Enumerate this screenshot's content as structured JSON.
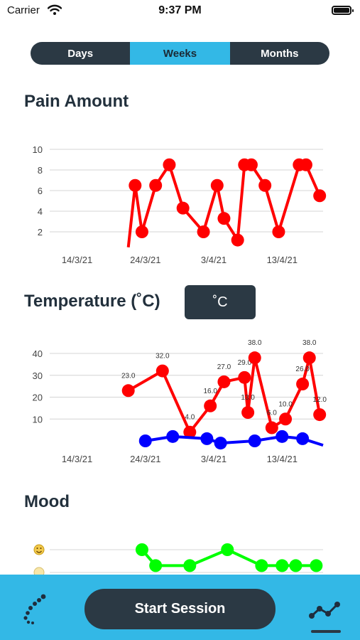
{
  "status_bar": {
    "carrier": "Carrier",
    "time": "9:37 PM"
  },
  "segments": [
    {
      "label": "Days",
      "active": false
    },
    {
      "label": "Weeks",
      "active": true
    },
    {
      "label": "Months",
      "active": false
    }
  ],
  "sections": {
    "pain_title": "Pain Amount",
    "temp_title": "Temperature (˚C)",
    "temp_unit_button": "˚C",
    "mood_title": "Mood"
  },
  "tab_bar": {
    "start_session_label": "Start Session",
    "left_icon": "footsteps-icon",
    "right_icon": "trend-chart-icon"
  },
  "colors": {
    "accent": "#33b8e6",
    "dark": "#2b3944",
    "red_series": "#ff0000",
    "blue_series": "#0000ff",
    "green_series": "#00ff00"
  },
  "chart_data": [
    {
      "type": "line",
      "title": "Pain Amount",
      "x_tick_labels": [
        "14/3/21",
        "24/3/21",
        "3/4/21",
        "13/4/21"
      ],
      "x_ticks_days": [
        0,
        10,
        20,
        30
      ],
      "y_ticks": [
        2,
        4,
        6,
        8,
        10
      ],
      "ylim": [
        0,
        10
      ],
      "xlim_days": [
        -4,
        36
      ],
      "series": [
        {
          "color": "#ff0000",
          "points": [
            {
              "x": 7.5,
              "y": 0.5,
              "marker": false
            },
            {
              "x": 8.5,
              "y": 6.5
            },
            {
              "x": 9.5,
              "y": 2
            },
            {
              "x": 11.5,
              "y": 6.5
            },
            {
              "x": 13.5,
              "y": 8.5
            },
            {
              "x": 15.5,
              "y": 4.3
            },
            {
              "x": 18.5,
              "y": 2
            },
            {
              "x": 20.5,
              "y": 6.5
            },
            {
              "x": 21.5,
              "y": 3.3
            },
            {
              "x": 23.5,
              "y": 1.2
            },
            {
              "x": 24.5,
              "y": 8.5
            },
            {
              "x": 25.5,
              "y": 8.5
            },
            {
              "x": 27.5,
              "y": 6.5
            },
            {
              "x": 29.5,
              "y": 2
            },
            {
              "x": 32.5,
              "y": 8.5
            },
            {
              "x": 33.5,
              "y": 8.5
            },
            {
              "x": 35.5,
              "y": 5.5
            }
          ]
        }
      ]
    },
    {
      "type": "line",
      "title": "Temperature (˚C)",
      "x_tick_labels": [
        "14/3/21",
        "24/3/21",
        "3/4/21",
        "13/4/21"
      ],
      "x_ticks_days": [
        0,
        10,
        20,
        30
      ],
      "y_ticks": [
        10,
        20,
        30,
        40
      ],
      "ylim": [
        0,
        40
      ],
      "xlim_days": [
        -4,
        36
      ],
      "series": [
        {
          "color": "#ff0000",
          "points": [
            {
              "x": 7.5,
              "y": 23.0,
              "label": "23.0"
            },
            {
              "x": 12.5,
              "y": 32.0,
              "label": "32.0"
            },
            {
              "x": 16.5,
              "y": 4.0,
              "label": "4.0"
            },
            {
              "x": 19.5,
              "y": 16.0,
              "label": "16.0"
            },
            {
              "x": 21.5,
              "y": 27.0,
              "label": "27.0"
            },
            {
              "x": 24.5,
              "y": 29.0,
              "label": "29.0"
            },
            {
              "x": 25.0,
              "y": 13.0,
              "label": "13.0"
            },
            {
              "x": 26.0,
              "y": 38.0,
              "label": "38.0"
            },
            {
              "x": 28.5,
              "y": 6.0,
              "label": "6.0"
            },
            {
              "x": 30.5,
              "y": 10.0,
              "label": "10.0"
            },
            {
              "x": 33.0,
              "y": 26.0,
              "label": "26.0"
            },
            {
              "x": 34.0,
              "y": 38.0,
              "label": "38.0"
            },
            {
              "x": 35.5,
              "y": 12.0,
              "label": "12.0"
            }
          ]
        },
        {
          "color": "#0000ff",
          "points": [
            {
              "x": 10.0,
              "y": 0.0
            },
            {
              "x": 14.0,
              "y": 2.0
            },
            {
              "x": 19.0,
              "y": 1.0
            },
            {
              "x": 21.0,
              "y": -1.0
            },
            {
              "x": 26.0,
              "y": 0.0
            },
            {
              "x": 30.0,
              "y": 2.0
            },
            {
              "x": 33.0,
              "y": 1.0
            },
            {
              "x": 36.0,
              "y": -2.0,
              "marker": false
            }
          ]
        }
      ]
    },
    {
      "type": "line",
      "title": "Mood",
      "x_tick_labels": [],
      "x_ticks_days": [],
      "y_ticks": [],
      "ylim": [
        0,
        10
      ],
      "xlim_days": [
        -4,
        36
      ],
      "series": [
        {
          "color": "#00ff00",
          "points": [
            {
              "x": 9.5,
              "y": 10
            },
            {
              "x": 11.5,
              "y": 3
            },
            {
              "x": 16.5,
              "y": 3
            },
            {
              "x": 22.0,
              "y": 10
            },
            {
              "x": 27.0,
              "y": 3
            },
            {
              "x": 30.0,
              "y": 3
            },
            {
              "x": 32.0,
              "y": 3
            },
            {
              "x": 35.0,
              "y": 3
            }
          ]
        }
      ]
    }
  ]
}
